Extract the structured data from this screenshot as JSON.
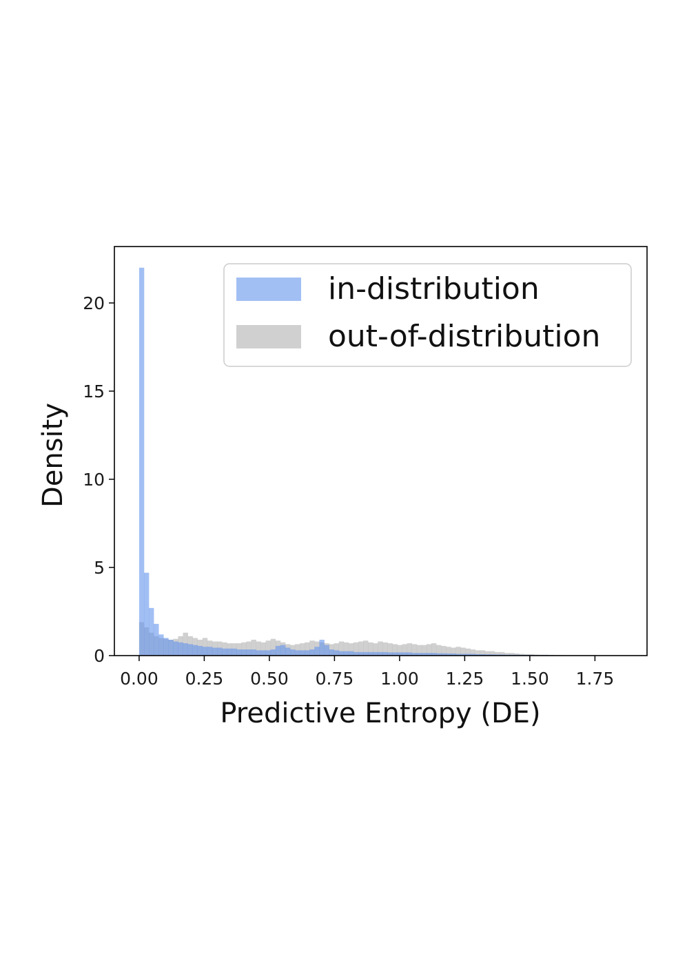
{
  "chart_data": {
    "type": "histogram",
    "title": "",
    "xlabel": "Predictive Entropy (DE)",
    "ylabel": "Density",
    "xlim": [
      -0.095,
      1.95
    ],
    "ylim": [
      0,
      23.2
    ],
    "xticks": [
      {
        "value": 0.0,
        "label": "0.00"
      },
      {
        "value": 0.25,
        "label": "0.25"
      },
      {
        "value": 0.5,
        "label": "0.50"
      },
      {
        "value": 0.75,
        "label": "0.75"
      },
      {
        "value": 1.0,
        "label": "1.00"
      },
      {
        "value": 1.25,
        "label": "1.25"
      },
      {
        "value": 1.5,
        "label": "1.50"
      },
      {
        "value": 1.75,
        "label": "1.75"
      }
    ],
    "yticks": [
      {
        "value": 0,
        "label": "0"
      },
      {
        "value": 5,
        "label": "5"
      },
      {
        "value": 10,
        "label": "10"
      },
      {
        "value": 15,
        "label": "15"
      },
      {
        "value": 20,
        "label": "20"
      }
    ],
    "bin_start": 0.0,
    "bin_width": 0.0187,
    "legend_position": "upper-right",
    "grid": false,
    "series": [
      {
        "name": "in-distribution",
        "color": "#6495ED",
        "opacity": 0.6,
        "densities": [
          22.0,
          4.7,
          2.7,
          1.8,
          1.2,
          1.0,
          0.9,
          0.8,
          0.75,
          0.7,
          0.65,
          0.6,
          0.55,
          0.5,
          0.5,
          0.45,
          0.45,
          0.4,
          0.4,
          0.4,
          0.35,
          0.35,
          0.35,
          0.35,
          0.3,
          0.3,
          0.3,
          0.35,
          0.55,
          0.6,
          0.45,
          0.35,
          0.3,
          0.3,
          0.3,
          0.35,
          0.5,
          0.9,
          0.6,
          0.35,
          0.3,
          0.25,
          0.25,
          0.25,
          0.2,
          0.2,
          0.2,
          0.2,
          0.2,
          0.2,
          0.2,
          0.18,
          0.18,
          0.18,
          0.18,
          0.18,
          0.15,
          0.15,
          0.15,
          0.15,
          0.15,
          0.13,
          0.13,
          0.12,
          0.12,
          0.1,
          0.1,
          0.1,
          0.1,
          0.08,
          0.08,
          0.07,
          0.07,
          0.06,
          0.06,
          0.05,
          0.05,
          0.05,
          0.04,
          0.04,
          0.04,
          0.03,
          0.03,
          0.03,
          0.02,
          0.02,
          0.02,
          0.02,
          0.01,
          0.01,
          0.01,
          0.01,
          0.01,
          0.01,
          0.0,
          0.0,
          0.0,
          0.0,
          0.0,
          0.0
        ]
      },
      {
        "name": "out-of-distribution",
        "color": "#A9A9A9",
        "opacity": 0.55,
        "densities": [
          1.9,
          1.6,
          1.3,
          1.1,
          1.0,
          0.95,
          0.9,
          0.95,
          1.1,
          1.3,
          1.1,
          1.0,
          0.9,
          1.0,
          0.85,
          0.8,
          0.8,
          0.75,
          0.7,
          0.7,
          0.7,
          0.75,
          0.8,
          0.9,
          0.8,
          0.75,
          0.85,
          0.95,
          0.85,
          0.75,
          0.65,
          0.6,
          0.65,
          0.7,
          0.75,
          0.85,
          0.8,
          0.75,
          0.7,
          0.65,
          0.7,
          0.8,
          0.75,
          0.7,
          0.75,
          0.8,
          0.85,
          0.75,
          0.7,
          0.8,
          0.75,
          0.7,
          0.65,
          0.6,
          0.65,
          0.7,
          0.65,
          0.6,
          0.6,
          0.65,
          0.7,
          0.6,
          0.55,
          0.5,
          0.45,
          0.5,
          0.45,
          0.4,
          0.35,
          0.3,
          0.3,
          0.25,
          0.25,
          0.2,
          0.2,
          0.15,
          0.15,
          0.12,
          0.1,
          0.08,
          0.08,
          0.06,
          0.05,
          0.05,
          0.04,
          0.03,
          0.03,
          0.02,
          0.02,
          0.02,
          0.01,
          0.01,
          0.01,
          0.01,
          0.01,
          0.0,
          0.0,
          0.0,
          0.0,
          0.0
        ]
      }
    ]
  }
}
